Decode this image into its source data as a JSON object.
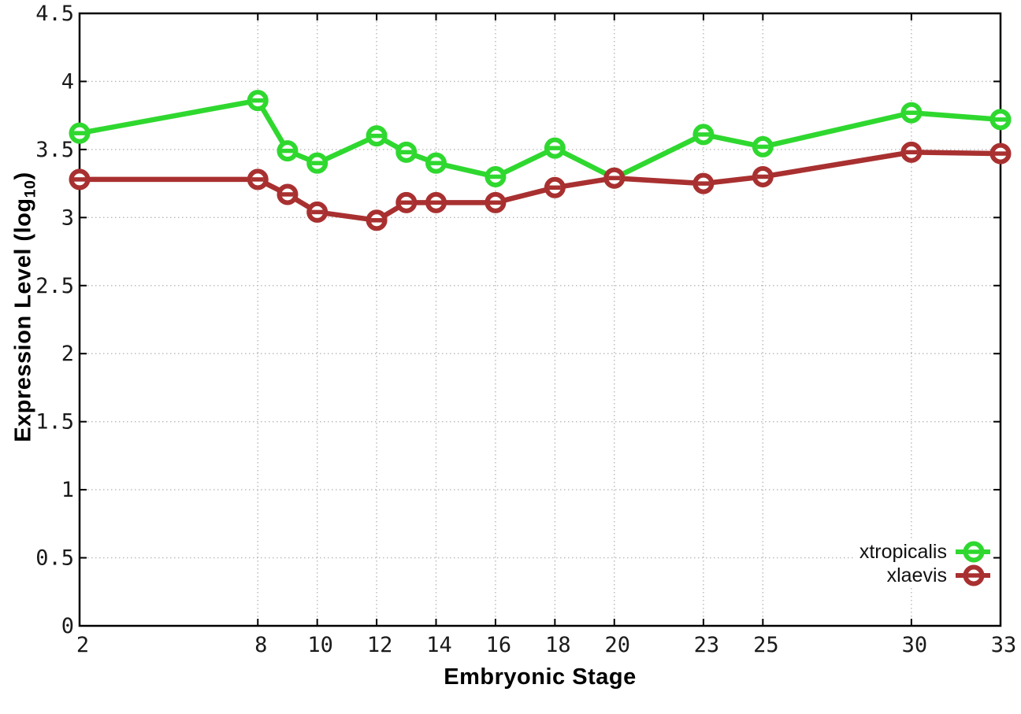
{
  "chart_data": {
    "type": "line",
    "title": "",
    "xlabel": "Embryonic Stage",
    "ylabel": "Expression Level (log10)",
    "ylabel_parts": {
      "pre": "Expression Level (log",
      "sub": "10",
      "post": ")"
    },
    "xlim": [
      2,
      33
    ],
    "ylim": [
      0,
      4.5
    ],
    "x_ticks": [
      2,
      8,
      10,
      12,
      14,
      16,
      18,
      20,
      23,
      25,
      30,
      33
    ],
    "y_ticks": [
      0,
      0.5,
      1,
      1.5,
      2,
      2.5,
      3,
      3.5,
      4,
      4.5
    ],
    "y_tick_labels": [
      "0",
      "0.5",
      "1",
      "1.5",
      "2",
      "2.5",
      "3",
      "3.5",
      "4",
      "4.5"
    ],
    "grid": true,
    "grid_style": "dotted",
    "legend_position": "bottom-right-inside",
    "x": [
      2,
      8,
      9,
      10,
      12,
      13,
      14,
      16,
      18,
      20,
      23,
      25,
      30,
      33
    ],
    "series": [
      {
        "name": "xtropicalis",
        "color": "#2fd82f",
        "values": [
          3.62,
          3.86,
          3.49,
          3.4,
          3.6,
          3.48,
          3.4,
          3.3,
          3.51,
          3.29,
          3.61,
          3.52,
          3.77,
          3.72
        ]
      },
      {
        "name": "xlaevis",
        "color": "#a93030",
        "values": [
          3.28,
          3.28,
          3.17,
          3.04,
          2.98,
          3.11,
          3.11,
          3.11,
          3.22,
          3.29,
          3.25,
          3.3,
          3.48,
          3.47
        ]
      }
    ],
    "marker": "open-circle-with-dash",
    "axis_color": "#000000",
    "grid_color": "#b8b8b8",
    "tick_label_color": "#1a1a1a"
  }
}
